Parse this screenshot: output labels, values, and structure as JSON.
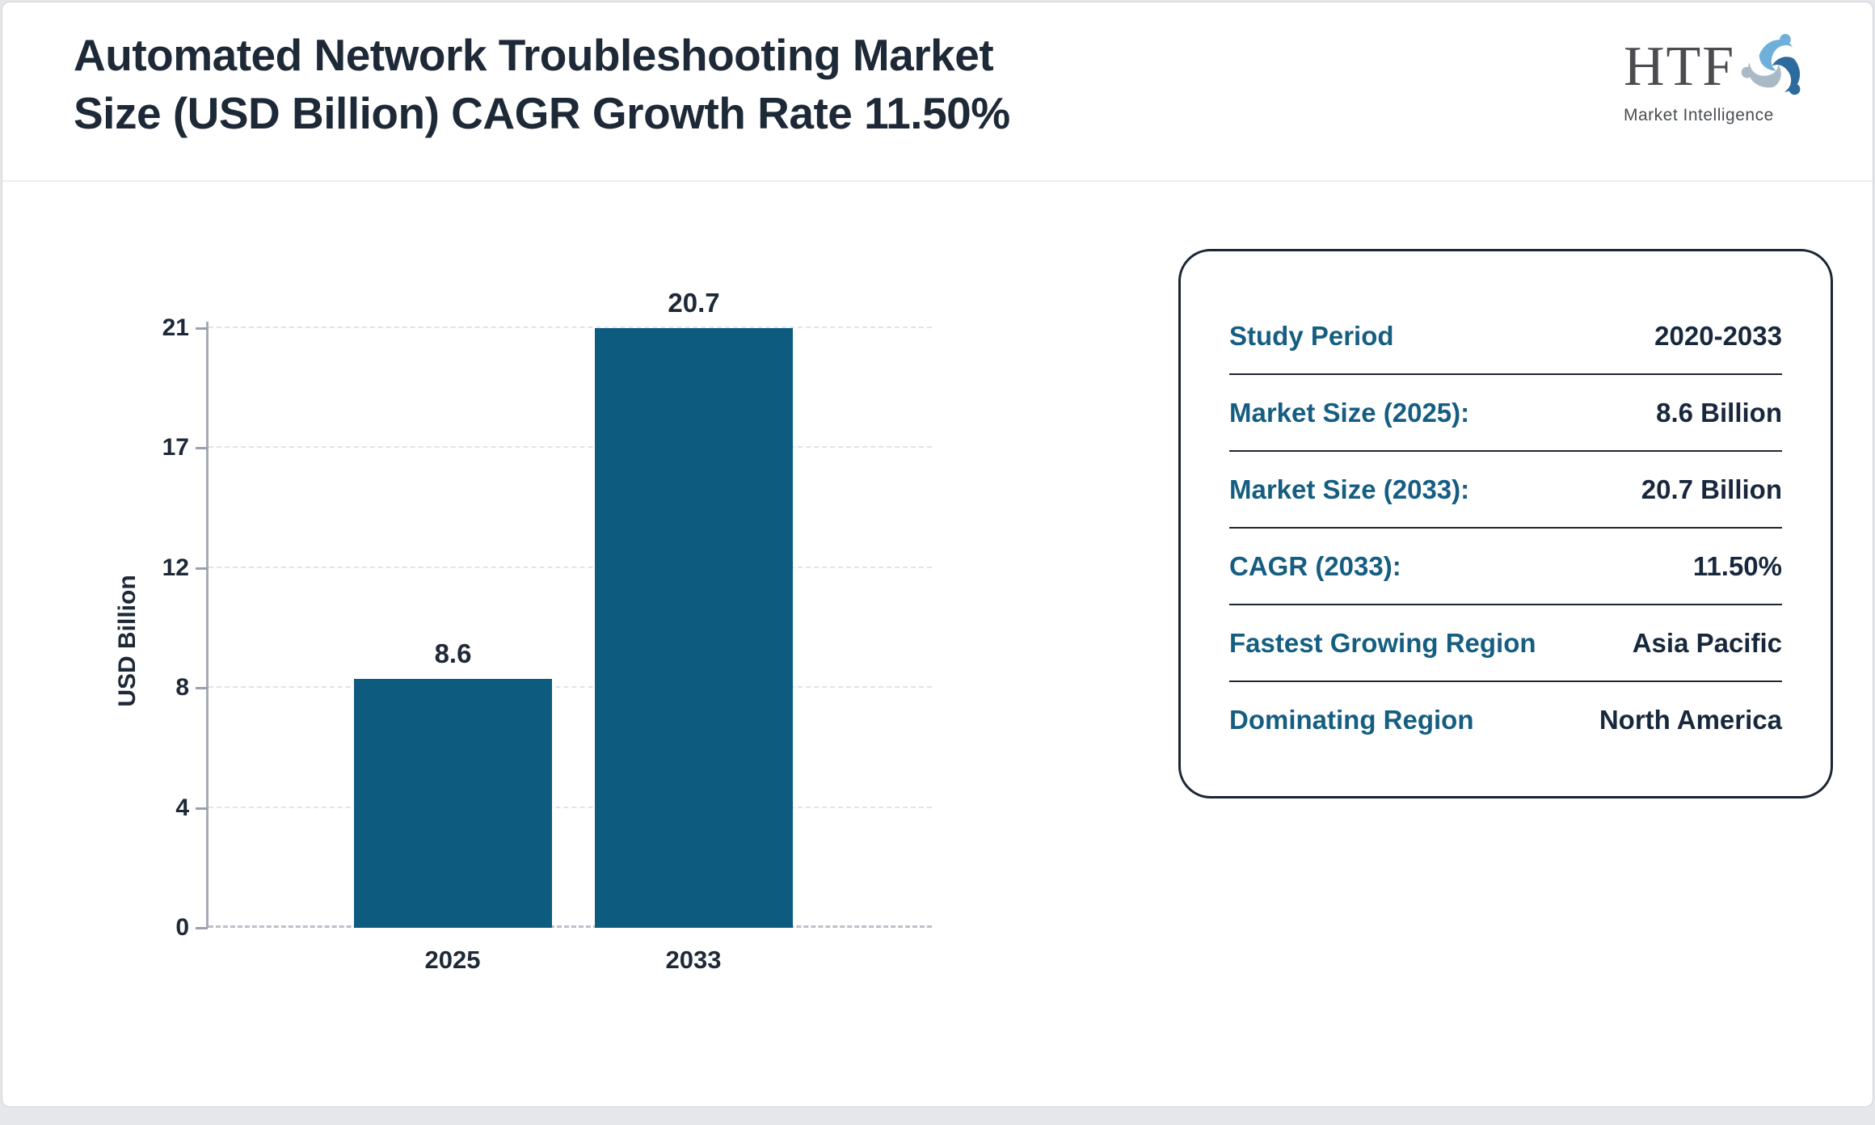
{
  "header": {
    "title_lines": [
      "Automated Network Troubleshooting Market",
      "Size (USD Billion) CAGR Growth Rate 11.50%"
    ]
  },
  "logo": {
    "acronym": "HTF",
    "subtitle": "Market Intelligence"
  },
  "chart_data": {
    "type": "bar",
    "title": "Automated Network Troubleshooting Market Size (USD Billion)",
    "categories": [
      "2025",
      "2033"
    ],
    "values": [
      8.6,
      20.7
    ],
    "value_labels": [
      "8.6",
      "20.7"
    ],
    "xlabel": "",
    "ylabel": "USD Billion",
    "ylim": [
      0,
      20.7
    ],
    "ytick_values": [
      0,
      4.14,
      8.28,
      12.42,
      16.56,
      20.7
    ],
    "ytick_labels": [
      "0",
      "4",
      "8",
      "12",
      "17",
      "21"
    ],
    "grid": true,
    "legend_position": "none",
    "bar_color": "#0e5b80"
  },
  "info_panel": {
    "rows": [
      {
        "label": "Study Period",
        "value": "2020-2033"
      },
      {
        "label": "Market Size (2025):",
        "value": "8.6 Billion"
      },
      {
        "label": "Market Size (2033):",
        "value": "20.7 Billion"
      },
      {
        "label": "CAGR (2033):",
        "value": "11.50%"
      },
      {
        "label": "Fastest Growing Region",
        "value": "Asia Pacific"
      },
      {
        "label": "Dominating Region",
        "value": "North America"
      }
    ]
  },
  "colors": {
    "bar": "#0e5b80",
    "label_teal": "#155e82",
    "text_dark": "#1e2937",
    "page_background": "#e6e7ea",
    "card_background": "#ffffff"
  }
}
